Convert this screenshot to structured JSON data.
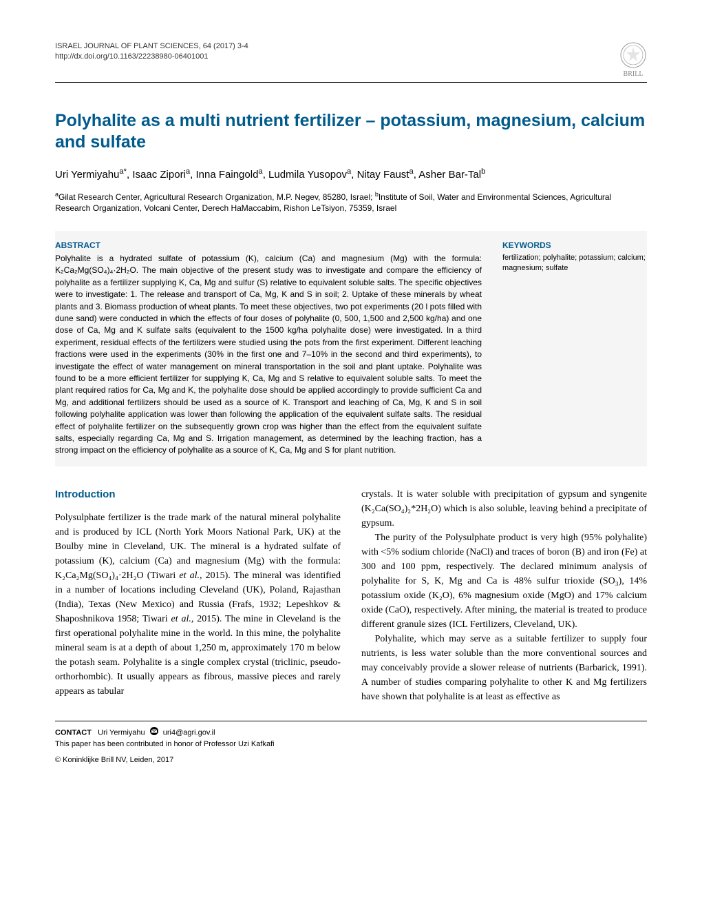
{
  "journal": {
    "name": "ISRAEL JOURNAL OF PLANT SCIENCES, 64 (2017) 3-4",
    "doi": "http://dx.doi.org/10.1163/22238980-06401001"
  },
  "publisher": {
    "name": "BRILL",
    "logo_color": "#999999"
  },
  "title": "Polyhalite as a multi nutrient fertilizer – potassium, magnesium, calcium and sulfate",
  "authors_html": "Uri Yermiyahu<sup>a*</sup>, Isaac Zipori<sup>a</sup>, Inna Faingold<sup>a</sup>, Ludmila Yusopov<sup>a</sup>, Nitay Faust<sup>a</sup>, Asher Bar-Tal<sup>b</sup>",
  "affiliations_html": "<sup>a</sup>Gilat Research Center, Agricultural Research Organization, M.P. Negev, 85280, Israel; <sup>b</sup>Institute of Soil, Water and Environmental Sciences, Agricultural Research Organization, Volcani Center, Derech HaMaccabim, Rishon LeTsiyon, 75359, Israel",
  "abstract": {
    "heading": "ABSTRACT",
    "text": "Polyhalite is a hydrated sulfate of potassium (K), calcium (Ca) and magnesium (Mg) with the formula: K₂Ca₂Mg(SO₄)₄·2H₂O. The main objective of the present study was to investigate and compare the efficiency of polyhalite as a fertilizer supplying K, Ca, Mg and sulfur (S) relative to equivalent soluble salts. The specific objectives were to investigate: 1. The release and transport of Ca, Mg, K and S in soil; 2. Uptake of these minerals by wheat plants and 3. Biomass production of wheat plants. To meet these objectives, two pot experiments (20 l pots filled with dune sand) were conducted in which the effects of four doses of polyhalite (0, 500, 1,500 and 2,500 kg/ha) and one dose of Ca, Mg and K sulfate salts (equivalent to the 1500 kg/ha polyhalite dose) were investigated. In a third experiment, residual effects of the fertilizers were studied using the pots from the first experiment. Different leaching fractions were used in the experiments (30% in the first one and 7–10% in the second and third experiments), to investigate the effect of water management on mineral transportation in the soil and plant uptake. Polyhalite was found to be a more efficient fertilizer for supplying K, Ca, Mg and S relative to equivalent soluble salts. To meet the plant required ratios for Ca, Mg and K, the polyhalite dose should be applied accordingly to provide sufficient Ca and Mg, and additional fertilizers should be used as a source of K. Transport and leaching of Ca, Mg, K and S in soil following polyhalite application was lower than following the application of the equivalent sulfate salts. The residual effect of polyhalite fertilizer on the subsequently grown crop was higher than the effect from the equivalent sulfate salts, especially regarding Ca, Mg and S. Irrigation management, as determined by the leaching fraction, has a strong impact on the efficiency of polyhalite as a source of K, Ca, Mg and S for plant nutrition."
  },
  "keywords": {
    "heading": "KEYWORDS",
    "text": "fertilization; polyhalite; potassium; calcium; magnesium; sulfate"
  },
  "intro": {
    "heading": "Introduction",
    "col1_p1_html": "Polysulphate fertilizer is the trade mark of the natural mineral polyhalite and is produced by ICL (North York Moors National Park, UK) at the Boulby mine in Cleveland, UK. The mineral is a hydrated sulfate of potassium (K), calcium (Ca) and magnesium (Mg) with the formula: K₂Ca₂Mg(SO₄)₄·2H₂O (Tiwari <i>et al.,</i> 2015). The mineral was identified in a number of locations including Cleveland (UK), Poland, Rajasthan (India), Texas (New Mexico) and Russia (Frafs, 1932; Lepeshkov & Shaposhnikova 1958; Tiwari <i>et al.,</i> 2015). The mine in Cleveland is the first operational polyhalite mine in the world. In this mine, the polyhalite mineral seam is at a depth of about 1,250 m, approximately 170 m below the potash seam. Polyhalite is a single complex crystal (triclinic, pseudo-orthorhombic). It usually appears as fibrous, massive pieces and rarely appears as tabular",
    "col2_p1_html": "crystals. It is water soluble with precipitation of gypsum and syngenite (K₂Ca(SO₄)₂*2H₂O) which is also soluble, leaving behind a precipitate of gypsum.",
    "col2_p2_html": "The purity of the Polysulphate product is very high (95% polyhalite) with &lt;5% sodium chloride (NaCl) and traces of boron (B) and iron (Fe) at 300 and 100 ppm, respectively. The declared minimum analysis of polyhalite for S, K, Mg and Ca is 48% sulfur trioxide (SO₃), 14% potassium oxide (K₂O), 6% magnesium oxide (MgO) and 17% calcium oxide (CaO), respectively. After mining, the material is treated to produce different granule sizes (ICL Fertilizers, Cleveland, UK).",
    "col2_p3_html": "Polyhalite, which may serve as a suitable fertilizer to supply four nutrients, is less water soluble than the more conventional sources and may conceivably provide a slower release of nutrients (Barbarick, 1991). A number of studies comparing polyhalite to other K and Mg fertilizers have shown that polyhalite is at least as effective as"
  },
  "contact": {
    "label": "CONTACT",
    "name": "Uri Yermiyahu",
    "email": "uri4@agri.gov.il",
    "honor": "This paper has been contributed in honor of Professor Uzi Kafkafi",
    "copyright": "© Koninklijke Brill NV, Leiden, 2017"
  },
  "colors": {
    "heading_blue": "#005a8c",
    "text": "#000000",
    "bg": "#ffffff",
    "abstract_bg": "#f5f5f5",
    "rule": "#000000"
  },
  "typography": {
    "title_fontsize": 25,
    "body_fontsize": 14,
    "abstract_fontsize": 12,
    "footer_fontsize": 11
  }
}
